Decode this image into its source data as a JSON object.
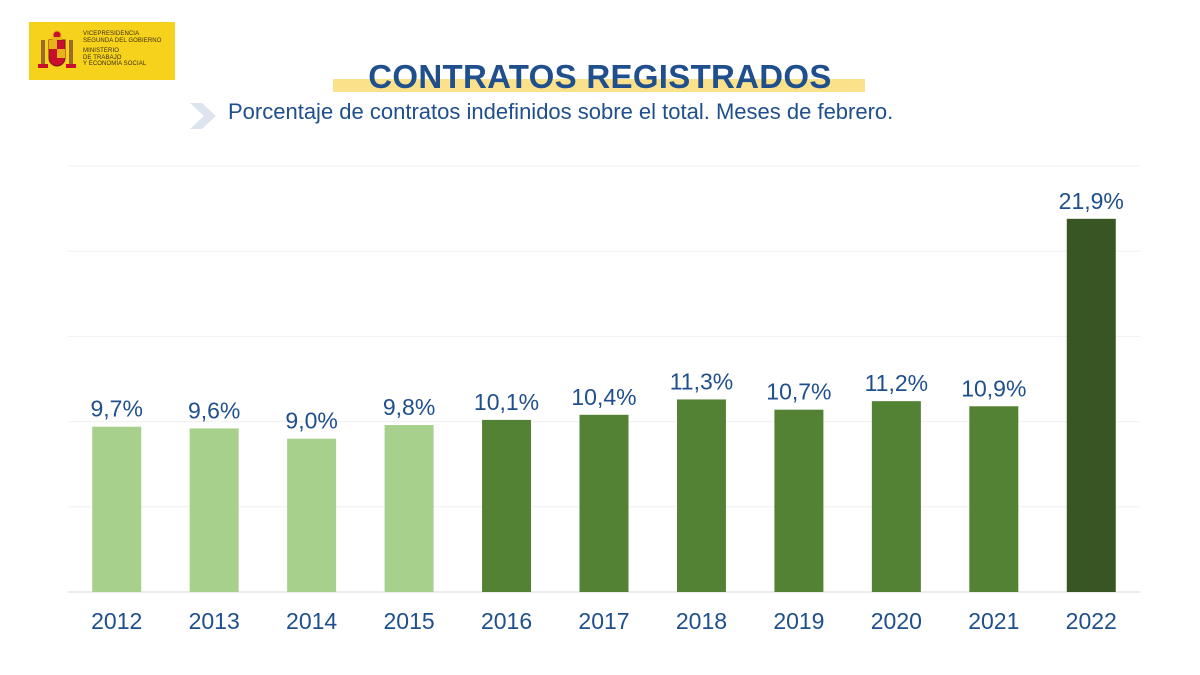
{
  "logo": {
    "lines": [
      "VICEPRESIDENCIA",
      "SEGUNDA DEL GOBIERNO",
      "MINISTERIO",
      "DE TRABAJO",
      "Y ECONOMÍA SOCIAL"
    ],
    "color": "#f6d21d"
  },
  "header": {
    "title": "CONTRATOS REGISTRADOS",
    "subtitle": "Porcentaje de contratos indefinidos sobre el total. Meses de febrero."
  },
  "colors": {
    "title": "#1f4f8c",
    "highlight": "#fbe28a",
    "chevron": "#dde4f0"
  },
  "chart_data": {
    "type": "bar",
    "categories": [
      "2012",
      "2013",
      "2014",
      "2015",
      "2016",
      "2017",
      "2018",
      "2019",
      "2020",
      "2021",
      "2022"
    ],
    "values": [
      9.7,
      9.6,
      9.0,
      9.8,
      10.1,
      10.4,
      11.3,
      10.7,
      11.2,
      10.9,
      21.9
    ],
    "data_labels": [
      "9,7%",
      "9,6%",
      "9,0%",
      "9,8%",
      "10,1%",
      "10,4%",
      "11,3%",
      "10,7%",
      "11,2%",
      "10,9%",
      "21,9%"
    ],
    "bar_colors": [
      "#a8d08d",
      "#a8d08d",
      "#a8d08d",
      "#a8d08d",
      "#548235",
      "#548235",
      "#548235",
      "#548235",
      "#548235",
      "#548235",
      "#375623"
    ],
    "ylim": [
      0,
      25
    ],
    "grid": true,
    "legend": "none",
    "title": "",
    "xlabel": "",
    "ylabel": ""
  }
}
